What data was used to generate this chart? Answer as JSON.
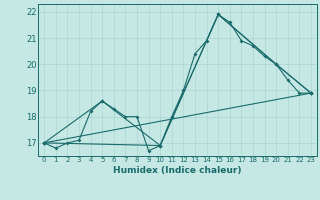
{
  "title": "",
  "xlabel": "Humidex (Indice chaleur)",
  "ylabel": "",
  "bg_color": "#c5e8e5",
  "grid_color": "#aad4d0",
  "line_color": "#1a6b6b",
  "spine_color": "#1a6b6b",
  "xlim": [
    -0.5,
    23.5
  ],
  "ylim": [
    16.5,
    22.3
  ],
  "xticks": [
    0,
    1,
    2,
    3,
    4,
    5,
    6,
    7,
    8,
    9,
    10,
    11,
    12,
    13,
    14,
    15,
    16,
    17,
    18,
    19,
    20,
    21,
    22,
    23
  ],
  "yticks": [
    17,
    18,
    19,
    20,
    21,
    22
  ],
  "line1_x": [
    0,
    1,
    2,
    3,
    4,
    5,
    6,
    7,
    8,
    9,
    10,
    11,
    12,
    13,
    14,
    15,
    16,
    17,
    18,
    19,
    20,
    21,
    22,
    23
  ],
  "line1_y": [
    17.0,
    16.8,
    17.0,
    17.1,
    18.2,
    18.6,
    18.3,
    18.0,
    18.0,
    16.7,
    16.9,
    18.0,
    19.0,
    20.4,
    20.9,
    21.9,
    21.6,
    20.9,
    20.7,
    20.3,
    20.0,
    19.4,
    18.9,
    18.9
  ],
  "line2_x": [
    0,
    5,
    10,
    15,
    20,
    23
  ],
  "line2_y": [
    17.0,
    18.6,
    16.9,
    21.9,
    20.0,
    18.9
  ],
  "line3_x": [
    0,
    10,
    15,
    20,
    23
  ],
  "line3_y": [
    17.0,
    16.9,
    21.9,
    20.0,
    18.9
  ],
  "line4_x": [
    0,
    23
  ],
  "line4_y": [
    17.0,
    18.9
  ],
  "xlabel_fontsize": 6.5,
  "xtick_fontsize": 5.0,
  "ytick_fontsize": 6.0,
  "marker": "D",
  "markersize": 2.0,
  "linewidth": 0.8
}
